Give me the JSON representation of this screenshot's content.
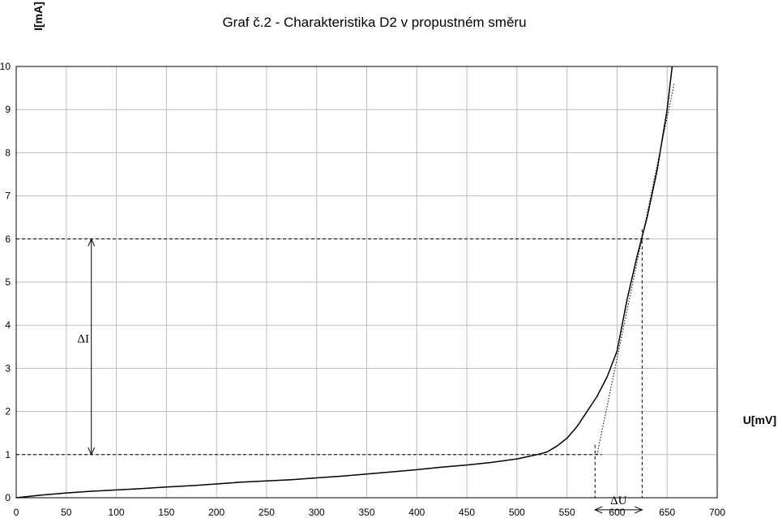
{
  "chart_data": {
    "type": "line",
    "title": "Graf č.2 - Charakteristika D2 v propustném směru",
    "xlabel": "U[mV]",
    "ylabel": "I[mA]",
    "xlim": [
      0,
      700
    ],
    "ylim": [
      0,
      10
    ],
    "xticks": [
      0,
      50,
      100,
      150,
      200,
      250,
      300,
      350,
      400,
      450,
      500,
      550,
      600,
      650,
      700
    ],
    "yticks": [
      0,
      1,
      2,
      3,
      4,
      5,
      6,
      7,
      8,
      9,
      10
    ],
    "grid": true,
    "legend": "none",
    "series": [
      {
        "x": [
          0,
          25,
          50,
          75,
          100,
          125,
          150,
          175,
          200,
          225,
          250,
          275,
          300,
          325,
          350,
          375,
          400,
          425,
          450,
          475,
          500,
          510,
          520,
          530,
          540,
          550,
          560,
          570,
          580,
          590,
          600,
          610,
          620,
          630,
          640,
          650,
          655
        ],
        "y": [
          0,
          0.06,
          0.11,
          0.15,
          0.18,
          0.21,
          0.25,
          0.28,
          0.32,
          0.36,
          0.39,
          0.42,
          0.46,
          0.5,
          0.55,
          0.6,
          0.65,
          0.71,
          0.76,
          0.82,
          0.9,
          0.95,
          1.0,
          1.06,
          1.2,
          1.38,
          1.65,
          2.0,
          2.35,
          2.8,
          3.4,
          4.6,
          5.6,
          6.5,
          7.6,
          9.0,
          10.0
        ]
      }
    ],
    "annotations": {
      "tangent": {
        "x1": 580,
        "y1": 1.0,
        "x2": 657,
        "y2": 9.6
      },
      "guide_lines": {
        "i_low": {
          "y": 1,
          "x_end": 585
        },
        "i_high": {
          "y": 6,
          "x_end": 632
        },
        "u_left": {
          "x": 578,
          "y_end": 1
        },
        "u_right": {
          "x": 625,
          "y_end": 6
        }
      },
      "delta_i": {
        "label": "ΔI",
        "x": 75,
        "y_from": 1,
        "y_to": 6
      },
      "delta_u": {
        "label": "ΔU",
        "y": -0.28,
        "x_from": 578,
        "x_to": 625
      }
    }
  }
}
